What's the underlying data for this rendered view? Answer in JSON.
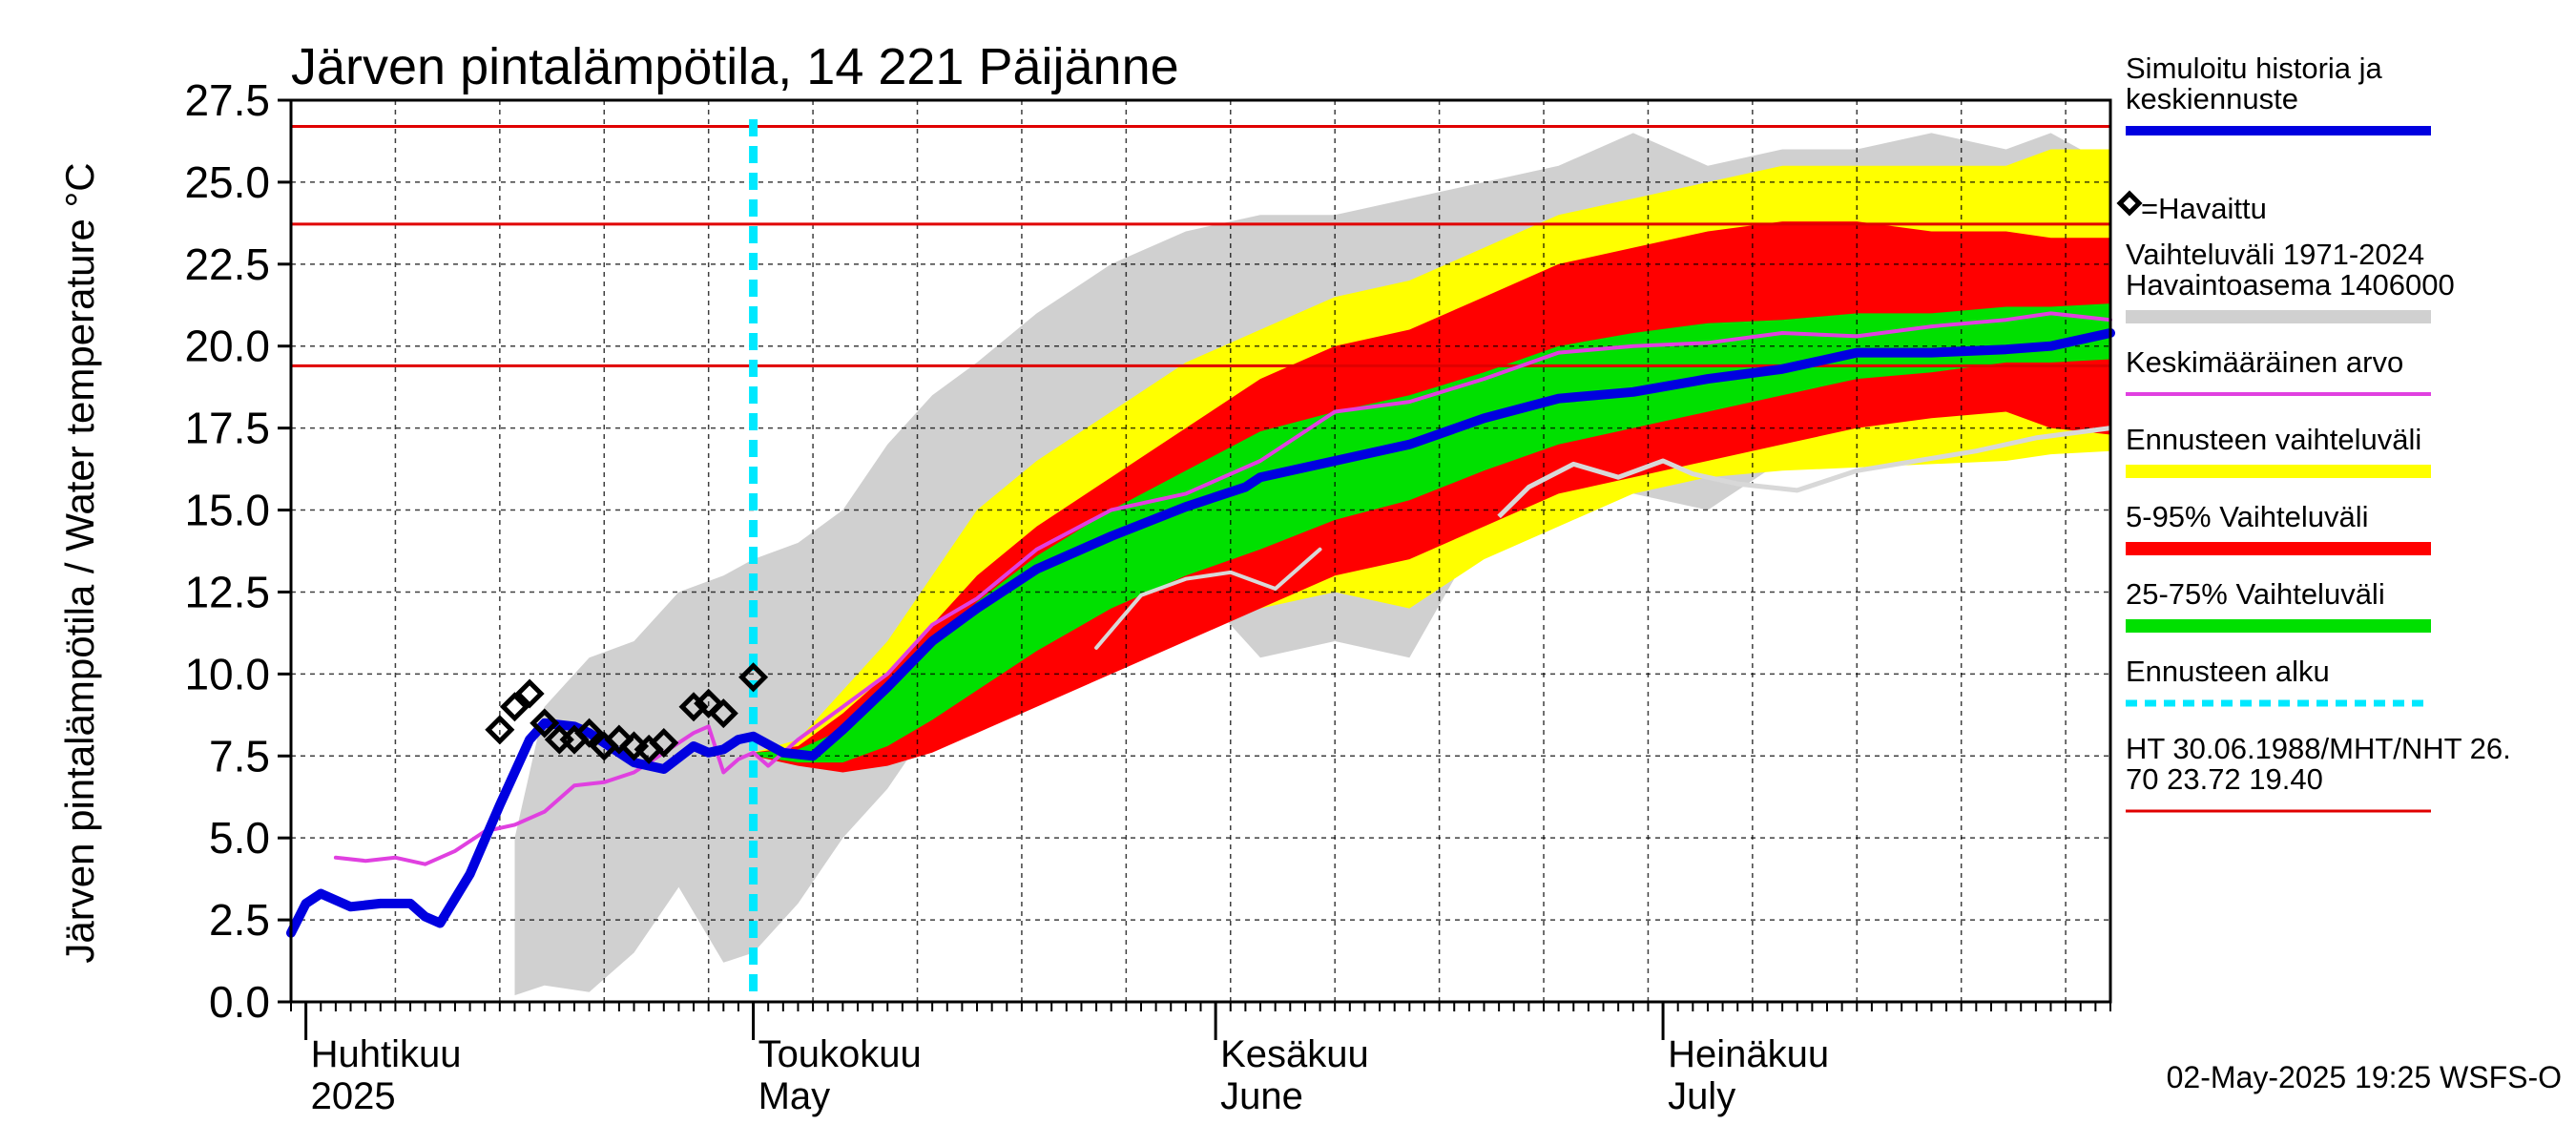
{
  "chart_data": {
    "type": "line",
    "title": "Järven pintalämpötila, 14 221 Päijänne",
    "ylabel": "Järven pintalämpötila / Water temperature °C",
    "ylim": [
      0,
      27.5
    ],
    "yticks": [
      "0.0",
      "2.5",
      "5.0",
      "7.5",
      "10.0",
      "12.5",
      "15.0",
      "17.5",
      "20.0",
      "22.5",
      "25.0",
      "27.5"
    ],
    "xlim": [
      "2025-03-31",
      "2025-07-31"
    ],
    "months": [
      {
        "date": "2025-04-01",
        "fi": "Huhtikuu",
        "en": "2025"
      },
      {
        "date": "2025-05-01",
        "fi": "Toukokuu",
        "en": "May"
      },
      {
        "date": "2025-06-01",
        "fi": "Kesäkuu",
        "en": "June"
      },
      {
        "date": "2025-07-01",
        "fi": "Heinäkuu",
        "en": "July"
      }
    ],
    "forecast_start": "2025-05-01",
    "hlines": [
      {
        "name": "HT",
        "value": 26.7,
        "color": "#e00000"
      },
      {
        "name": "MHT",
        "value": 23.72,
        "color": "#e00000"
      },
      {
        "name": "NHT",
        "value": 19.4,
        "color": "#e00000"
      }
    ],
    "bands": [
      {
        "name": "Vaihteluväli 1971-2024",
        "color": "#d0d0d0",
        "x": [
          "2025-04-15",
          "2025-04-17",
          "2025-04-20",
          "2025-04-23",
          "2025-04-26",
          "2025-04-29",
          "2025-05-01",
          "2025-05-04",
          "2025-05-07",
          "2025-05-10",
          "2025-05-13",
          "2025-05-16",
          "2025-05-20",
          "2025-05-25",
          "2025-05-30",
          "2025-06-04",
          "2025-06-09",
          "2025-06-14",
          "2025-06-19",
          "2025-06-24",
          "2025-06-29",
          "2025-07-04",
          "2025-07-09",
          "2025-07-14",
          "2025-07-19",
          "2025-07-24",
          "2025-07-27",
          "2025-07-31"
        ],
        "lower": [
          0.2,
          0.5,
          0.3,
          1.5,
          3.5,
          1.2,
          1.5,
          3.0,
          5.0,
          6.5,
          8.5,
          9.0,
          11.0,
          12.0,
          13.0,
          10.5,
          11.0,
          10.5,
          14.5,
          15.0,
          15.5,
          15.0,
          16.5,
          16.5,
          16.5,
          16.8,
          17.0,
          17.2
        ],
        "upper": [
          5.0,
          9.0,
          10.5,
          11.0,
          12.5,
          13.0,
          13.5,
          14.0,
          15.0,
          17.0,
          18.5,
          19.5,
          21.0,
          22.5,
          23.5,
          24.0,
          24.0,
          24.5,
          25.0,
          25.5,
          26.5,
          25.5,
          26.0,
          26.0,
          26.5,
          26.0,
          26.5,
          25.5
        ]
      },
      {
        "name": "Ennusteen vaihteluväli",
        "color": "#ffff00",
        "x": [
          "2025-05-01",
          "2025-05-04",
          "2025-05-07",
          "2025-05-10",
          "2025-05-13",
          "2025-05-16",
          "2025-05-20",
          "2025-05-25",
          "2025-05-30",
          "2025-06-04",
          "2025-06-09",
          "2025-06-14",
          "2025-06-19",
          "2025-06-24",
          "2025-06-29",
          "2025-07-04",
          "2025-07-09",
          "2025-07-14",
          "2025-07-19",
          "2025-07-24",
          "2025-07-27",
          "2025-07-31"
        ],
        "lower": [
          7.5,
          7.3,
          7.2,
          7.5,
          8.0,
          8.8,
          9.5,
          10.5,
          11.5,
          12.0,
          12.5,
          12.0,
          13.5,
          14.5,
          15.5,
          16.0,
          16.2,
          16.3,
          16.4,
          16.5,
          16.7,
          16.8
        ],
        "upper": [
          7.6,
          8.0,
          9.5,
          11.0,
          13.0,
          15.0,
          16.5,
          18.0,
          19.5,
          20.5,
          21.5,
          22.0,
          23.0,
          24.0,
          24.5,
          25.0,
          25.5,
          25.5,
          25.5,
          25.5,
          26.0,
          26.0
        ]
      },
      {
        "name": "5-95% Vaihteluväli",
        "color": "#ff0000",
        "x": [
          "2025-05-01",
          "2025-05-04",
          "2025-05-07",
          "2025-05-10",
          "2025-05-13",
          "2025-05-16",
          "2025-05-20",
          "2025-05-25",
          "2025-05-30",
          "2025-06-04",
          "2025-06-09",
          "2025-06-14",
          "2025-06-19",
          "2025-06-24",
          "2025-06-29",
          "2025-07-04",
          "2025-07-09",
          "2025-07-14",
          "2025-07-19",
          "2025-07-24",
          "2025-07-27",
          "2025-07-31"
        ],
        "lower": [
          7.5,
          7.2,
          7.0,
          7.2,
          7.6,
          8.2,
          9.0,
          10.0,
          11.0,
          12.0,
          13.0,
          13.5,
          14.5,
          15.5,
          16.0,
          16.5,
          17.0,
          17.5,
          17.8,
          18.0,
          17.5,
          17.3
        ],
        "upper": [
          7.6,
          7.8,
          8.8,
          10.0,
          11.5,
          13.0,
          14.5,
          16.0,
          17.5,
          19.0,
          20.0,
          20.5,
          21.5,
          22.5,
          23.0,
          23.5,
          23.8,
          23.8,
          23.5,
          23.5,
          23.3,
          23.3
        ]
      },
      {
        "name": "25-75% Vaihteluväli",
        "color": "#00e000",
        "x": [
          "2025-05-01",
          "2025-05-04",
          "2025-05-07",
          "2025-05-10",
          "2025-05-13",
          "2025-05-16",
          "2025-05-20",
          "2025-05-25",
          "2025-05-30",
          "2025-06-04",
          "2025-06-09",
          "2025-06-14",
          "2025-06-19",
          "2025-06-24",
          "2025-06-29",
          "2025-07-04",
          "2025-07-09",
          "2025-07-14",
          "2025-07-19",
          "2025-07-24",
          "2025-07-27",
          "2025-07-31"
        ],
        "lower": [
          7.5,
          7.3,
          7.3,
          7.8,
          8.6,
          9.5,
          10.7,
          12.0,
          13.0,
          13.8,
          14.7,
          15.3,
          16.2,
          17.0,
          17.5,
          18.0,
          18.5,
          19.0,
          19.2,
          19.5,
          19.5,
          19.6
        ],
        "upper": [
          7.6,
          7.7,
          8.3,
          9.4,
          10.8,
          12.2,
          13.6,
          15.0,
          16.2,
          17.4,
          18.0,
          18.5,
          19.2,
          20.0,
          20.4,
          20.7,
          20.8,
          21.0,
          21.0,
          21.2,
          21.2,
          21.3
        ]
      }
    ],
    "series": [
      {
        "name": "Keskimääräinen arvo",
        "color": "#e040e0",
        "x": [
          "2025-04-03",
          "2025-04-05",
          "2025-04-07",
          "2025-04-09",
          "2025-04-11",
          "2025-04-13",
          "2025-04-15",
          "2025-04-17",
          "2025-04-19",
          "2025-04-21",
          "2025-04-23",
          "2025-04-25",
          "2025-04-27",
          "2025-04-28",
          "2025-04-29",
          "2025-04-30",
          "2025-05-01",
          "2025-05-02",
          "2025-05-04",
          "2025-05-07",
          "2025-05-10",
          "2025-05-13",
          "2025-05-16",
          "2025-05-20",
          "2025-05-25",
          "2025-05-30",
          "2025-06-04",
          "2025-06-09",
          "2025-06-14",
          "2025-06-19",
          "2025-06-24",
          "2025-06-29",
          "2025-07-04",
          "2025-07-09",
          "2025-07-14",
          "2025-07-19",
          "2025-07-24",
          "2025-07-27",
          "2025-07-31"
        ],
        "values": [
          4.4,
          4.3,
          4.4,
          4.2,
          4.6,
          5.2,
          5.4,
          5.8,
          6.6,
          6.7,
          7.0,
          7.6,
          8.2,
          8.4,
          7.0,
          7.4,
          7.6,
          7.2,
          8.0,
          9.0,
          10.0,
          11.5,
          12.3,
          13.8,
          15.0,
          15.5,
          16.5,
          18.0,
          18.3,
          19.0,
          19.8,
          20.0,
          20.1,
          20.4,
          20.3,
          20.6,
          20.8,
          21.0,
          20.8
        ]
      },
      {
        "name": "Simuloitu historia ja keskiennuste",
        "color": "#0000e0",
        "x": [
          "2025-03-31",
          "2025-04-01",
          "2025-04-02",
          "2025-04-04",
          "2025-04-06",
          "2025-04-08",
          "2025-04-09",
          "2025-04-10",
          "2025-04-12",
          "2025-04-14",
          "2025-04-16",
          "2025-04-17",
          "2025-04-19",
          "2025-04-20",
          "2025-04-22",
          "2025-04-23",
          "2025-04-25",
          "2025-04-27",
          "2025-04-28",
          "2025-04-29",
          "2025-04-30",
          "2025-05-01",
          "2025-05-03",
          "2025-05-05",
          "2025-05-07",
          "2025-05-10",
          "2025-05-13",
          "2025-05-16",
          "2025-05-20",
          "2025-05-25",
          "2025-05-30",
          "2025-06-03",
          "2025-06-04",
          "2025-06-09",
          "2025-06-14",
          "2025-06-19",
          "2025-06-24",
          "2025-06-29",
          "2025-07-04",
          "2025-07-09",
          "2025-07-14",
          "2025-07-19",
          "2025-07-24",
          "2025-07-27",
          "2025-07-31"
        ],
        "values": [
          2.1,
          3.0,
          3.3,
          2.9,
          3.0,
          3.0,
          2.6,
          2.4,
          3.9,
          6.0,
          8.0,
          8.5,
          8.4,
          8.2,
          7.6,
          7.3,
          7.1,
          7.8,
          7.6,
          7.7,
          8.0,
          8.1,
          7.6,
          7.5,
          8.3,
          9.6,
          11.0,
          12.0,
          13.2,
          14.2,
          15.1,
          15.7,
          16.0,
          16.5,
          17.0,
          17.8,
          18.4,
          18.6,
          19.0,
          19.3,
          19.8,
          19.8,
          19.9,
          20.0,
          20.4
        ]
      },
      {
        "name": "Havaintoasema 1406000",
        "color": "#d8d8d8",
        "x": [
          "2025-05-24",
          "2025-05-27",
          "2025-05-30",
          "2025-06-02",
          "2025-06-05",
          "2025-06-08"
        ],
        "values": [
          10.8,
          12.4,
          12.9,
          13.1,
          12.6,
          13.8
        ],
        "x2": [
          "2025-06-20",
          "2025-06-22",
          "2025-06-25",
          "2025-06-28",
          "2025-07-01",
          "2025-07-03",
          "2025-07-06",
          "2025-07-10",
          "2025-07-14",
          "2025-07-18",
          "2025-07-22",
          "2025-07-26",
          "2025-07-31"
        ],
        "values2": [
          14.8,
          15.7,
          16.4,
          16.0,
          16.5,
          16.1,
          15.8,
          15.6,
          16.2,
          16.5,
          16.8,
          17.2,
          17.5
        ]
      }
    ],
    "observed": {
      "name": "=Havaittu",
      "x": [
        "2025-04-14",
        "2025-04-15",
        "2025-04-16",
        "2025-04-17",
        "2025-04-18",
        "2025-04-19",
        "2025-04-20",
        "2025-04-21",
        "2025-04-22",
        "2025-04-23",
        "2025-04-24",
        "2025-04-25",
        "2025-04-27",
        "2025-04-28",
        "2025-04-29",
        "2025-05-01"
      ],
      "values": [
        8.3,
        9.0,
        9.4,
        8.5,
        8.0,
        8.0,
        8.2,
        7.8,
        8.0,
        7.8,
        7.7,
        7.9,
        9.0,
        9.1,
        8.8,
        9.9
      ]
    }
  },
  "legend": {
    "items": [
      {
        "key": "sim",
        "lines": [
          "Simuloitu historia ja",
          "keskiennuste"
        ],
        "color": "#0000e0",
        "kind": "line",
        "width": 10
      },
      {
        "key": "obs",
        "lines": [
          "=Havaittu"
        ],
        "kind": "marker"
      },
      {
        "key": "range",
        "lines": [
          "Vaihteluväli 1971-2024",
          " Havaintoasema 1406000"
        ],
        "color": "#d0d0d0",
        "kind": "line",
        "width": 14
      },
      {
        "key": "mean",
        "lines": [
          "Keskimääräinen arvo"
        ],
        "color": "#e040e0",
        "kind": "line",
        "width": 4
      },
      {
        "key": "fc",
        "lines": [
          "Ennusteen vaihteluväli"
        ],
        "color": "#ffff00",
        "kind": "line",
        "width": 14
      },
      {
        "key": "p595",
        "lines": [
          "5-95% Vaihteluväli"
        ],
        "color": "#ff0000",
        "kind": "line",
        "width": 14
      },
      {
        "key": "p2575",
        "lines": [
          "25-75% Vaihteluväli"
        ],
        "color": "#00e000",
        "kind": "line",
        "width": 14
      },
      {
        "key": "start",
        "lines": [
          "Ennusteen alku"
        ],
        "color": "#00e8ff",
        "kind": "dash",
        "width": 7
      },
      {
        "key": "ht",
        "lines": [
          "HT 30.06.1988/MHT/NHT 26.",
          "70 23.72 19.40"
        ],
        "color": "#e00000",
        "kind": "line",
        "width": 3
      }
    ]
  },
  "footer": "02-May-2025 19:25 WSFS-O"
}
